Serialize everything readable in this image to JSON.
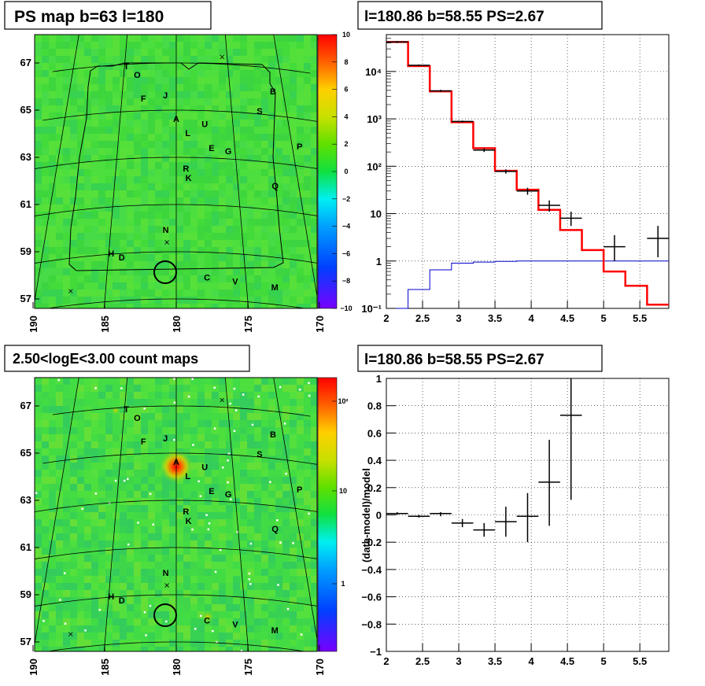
{
  "map_labels_panel1": [
    {
      "t": "T",
      "lon": 184.8,
      "lat": 66.8
    },
    {
      "t": "O",
      "lon": 183.7,
      "lat": 66.4
    },
    {
      "t": "F",
      "lon": 183.0,
      "lat": 65.4
    },
    {
      "t": "J",
      "lon": 181.0,
      "lat": 65.5
    },
    {
      "t": "A",
      "lon": 180.0,
      "lat": 64.5
    },
    {
      "t": "U",
      "lon": 177.5,
      "lat": 64.3
    },
    {
      "t": "L",
      "lon": 179.0,
      "lat": 63.9
    },
    {
      "t": "E",
      "lon": 177.0,
      "lat": 63.3
    },
    {
      "t": "G",
      "lon": 175.6,
      "lat": 63.2
    },
    {
      "t": "S",
      "lon": 172.5,
      "lat": 65.0
    },
    {
      "t": "B",
      "lon": 171.0,
      "lat": 65.9
    },
    {
      "t": "P",
      "lon": 169.4,
      "lat": 63.7
    },
    {
      "t": "R",
      "lon": 179.2,
      "lat": 62.4
    },
    {
      "t": "K",
      "lon": 179.0,
      "lat": 62.0
    },
    {
      "t": "Q",
      "lon": 172.0,
      "lat": 61.9
    },
    {
      "t": "N",
      "lon": 180.8,
      "lat": 59.8
    },
    {
      "t": "H",
      "lon": 184.8,
      "lat": 58.9
    },
    {
      "t": "D",
      "lon": 184.0,
      "lat": 58.7
    },
    {
      "t": "C",
      "lon": 177.8,
      "lat": 57.8
    },
    {
      "t": "V",
      "lon": 175.8,
      "lat": 57.7
    },
    {
      "t": "M",
      "lon": 173.0,
      "lat": 57.6
    }
  ],
  "panels": {
    "p1": {
      "title": "PS map b=63 l=180",
      "palette_labels": [
        "10",
        "8",
        "6",
        "4",
        "2",
        "0",
        "−2",
        "−4",
        "−6",
        "−8",
        "−10"
      ],
      "x_ticks": [
        "190",
        "185",
        "180",
        "175",
        "170"
      ],
      "y_ticks": [
        "67",
        "65",
        "63",
        "61",
        "59",
        "57"
      ]
    },
    "p2": {
      "title": "l=180.86 b=58.55 PS=2.67"
    },
    "p3": {
      "title": "2.50<logE<3.00 count maps",
      "palette_labels": [
        "10²",
        "10",
        "1"
      ],
      "x_ticks": [
        "190",
        "185",
        "180",
        "175",
        "170"
      ],
      "y_ticks": [
        "67",
        "65",
        "63",
        "61",
        "59",
        "57"
      ]
    },
    "p4": {
      "title": "l=180.86 b=58.55 PS=2.67"
    }
  },
  "chart_data": [
    {
      "type": "heatmap",
      "title": "PS map b=63 l=180",
      "xlim": [
        189.5,
        169.5
      ],
      "ylim": [
        56.6,
        68.2
      ],
      "x_ticks": [
        190,
        185,
        180,
        175,
        170
      ],
      "y_ticks": [
        67,
        65,
        63,
        61,
        59,
        57
      ],
      "zlim": [
        -10,
        10
      ],
      "grid": true,
      "circle": {
        "lon": 180.86,
        "lat": 58.55
      }
    },
    {
      "type": "line",
      "title": "l=180.86 b=58.55 PS=2.67",
      "xlim": [
        2,
        5.9
      ],
      "ylim": [
        0.1,
        60000
      ],
      "yscale": "log",
      "x_ticks": [
        "2",
        "2.5",
        "3",
        "3.5",
        "4",
        "4.5",
        "5",
        "5.5"
      ],
      "y_ticks": [
        "10⁻¹",
        "1",
        "10",
        "10²",
        "10³",
        "10⁴"
      ],
      "y_tick_values": [
        0.1,
        1,
        10,
        100,
        1000,
        10000
      ],
      "model_red": {
        "edges": [
          2.0,
          2.3,
          2.6,
          2.9,
          3.2,
          3.5,
          3.8,
          4.1,
          4.4,
          4.7,
          5.0,
          5.3,
          5.6,
          5.9
        ],
        "values": [
          42000,
          13000,
          3800,
          850,
          240,
          80,
          32,
          12,
          4.5,
          1.7,
          0.6,
          0.3,
          0.12
        ]
      },
      "model_blue": {
        "edges": [
          2.0,
          2.3,
          2.6,
          2.9,
          3.2,
          3.5,
          3.8,
          4.1,
          4.4,
          4.7,
          5.0,
          5.3,
          5.6,
          5.9
        ],
        "values": [
          0.05,
          0.25,
          0.65,
          0.9,
          0.95,
          0.98,
          1,
          1,
          1,
          1,
          1,
          1,
          1
        ]
      },
      "data_points": [
        {
          "x": 2.15,
          "xerr": 0.15,
          "y": 42000,
          "ylo": 40000,
          "yhi": 44000
        },
        {
          "x": 2.45,
          "xerr": 0.15,
          "y": 13500,
          "ylo": 13000,
          "yhi": 14000
        },
        {
          "x": 2.75,
          "xerr": 0.15,
          "y": 3900,
          "ylo": 3700,
          "yhi": 4100
        },
        {
          "x": 3.05,
          "xerr": 0.15,
          "y": 880,
          "ylo": 840,
          "yhi": 920
        },
        {
          "x": 3.35,
          "xerr": 0.15,
          "y": 220,
          "ylo": 200,
          "yhi": 240
        },
        {
          "x": 3.65,
          "xerr": 0.15,
          "y": 78,
          "ylo": 70,
          "yhi": 86
        },
        {
          "x": 3.95,
          "xerr": 0.15,
          "y": 30,
          "ylo": 25,
          "yhi": 35
        },
        {
          "x": 4.25,
          "xerr": 0.15,
          "y": 15,
          "ylo": 11,
          "yhi": 19
        },
        {
          "x": 4.55,
          "xerr": 0.15,
          "y": 8,
          "ylo": 5.5,
          "yhi": 11
        },
        {
          "x": 5.15,
          "xerr": 0.15,
          "y": 2,
          "ylo": 1,
          "yhi": 3.5
        },
        {
          "x": 5.75,
          "xerr": 0.15,
          "y": 3,
          "ylo": 1.2,
          "yhi": 5.5
        }
      ]
    },
    {
      "type": "heatmap",
      "title": "2.50<logE<3.00 count maps",
      "xlim": [
        189.5,
        169.5
      ],
      "ylim": [
        56.6,
        68.2
      ],
      "x_ticks": [
        190,
        185,
        180,
        175,
        170
      ],
      "y_ticks": [
        67,
        65,
        63,
        61,
        59,
        57
      ],
      "zscale": "log",
      "grid": true,
      "circle": {
        "lon": 180.86,
        "lat": 58.55
      }
    },
    {
      "type": "scatter",
      "title": "l=180.86 b=58.55 PS=2.67",
      "ylabel": "(data-model)/model",
      "xlim": [
        2,
        5.9
      ],
      "ylim": [
        -1,
        1
      ],
      "x_ticks": [
        "2",
        "2.5",
        "3",
        "3.5",
        "4",
        "4.5",
        "5",
        "5.5"
      ],
      "y_ticks": [
        "−1",
        "−0.8",
        "−0.6",
        "−0.4",
        "−0.2",
        "0",
        "0.2",
        "0.4",
        "0.6",
        "0.8",
        "1"
      ],
      "y_tick_values": [
        -1,
        -0.8,
        -0.6,
        -0.4,
        -0.2,
        0,
        0.2,
        0.4,
        0.6,
        0.8,
        1
      ],
      "data_points": [
        {
          "x": 2.15,
          "xerr": 0.15,
          "y": 0.01,
          "ylo": 0.0,
          "yhi": 0.02
        },
        {
          "x": 2.45,
          "xerr": 0.15,
          "y": -0.01,
          "ylo": -0.02,
          "yhi": 0.0
        },
        {
          "x": 2.75,
          "xerr": 0.15,
          "y": 0.01,
          "ylo": -0.01,
          "yhi": 0.02
        },
        {
          "x": 3.05,
          "xerr": 0.15,
          "y": -0.06,
          "ylo": -0.09,
          "yhi": -0.03
        },
        {
          "x": 3.35,
          "xerr": 0.15,
          "y": -0.11,
          "ylo": -0.16,
          "yhi": -0.06
        },
        {
          "x": 3.65,
          "xerr": 0.15,
          "y": -0.05,
          "ylo": -0.16,
          "yhi": 0.06
        },
        {
          "x": 3.95,
          "xerr": 0.15,
          "y": -0.01,
          "ylo": -0.2,
          "yhi": 0.16
        },
        {
          "x": 4.25,
          "xerr": 0.15,
          "y": 0.24,
          "ylo": -0.08,
          "yhi": 0.55
        },
        {
          "x": 4.55,
          "xerr": 0.15,
          "y": 0.73,
          "ylo": 0.11,
          "yhi": 1.0
        }
      ]
    }
  ]
}
